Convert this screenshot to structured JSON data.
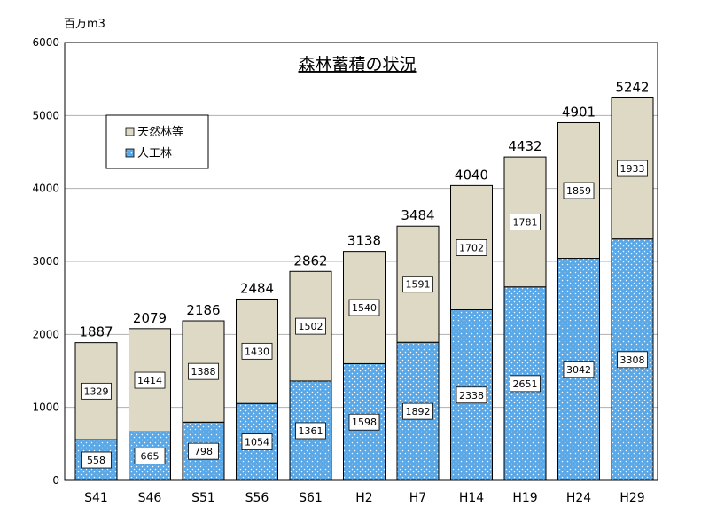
{
  "chart_data": {
    "type": "bar",
    "stacked": true,
    "title": "森林蓄積の状況",
    "unit_label": "百万m3",
    "categories": [
      "S41",
      "S46",
      "S51",
      "S56",
      "S61",
      "H2",
      "H7",
      "H14",
      "H19",
      "H24",
      "H29"
    ],
    "series": [
      {
        "name": "人工林",
        "values": [
          558,
          665,
          798,
          1054,
          1361,
          1598,
          1892,
          2338,
          2651,
          3042,
          3308
        ],
        "color": "#5ba8e6"
      },
      {
        "name": "天然林等",
        "values": [
          1329,
          1414,
          1388,
          1430,
          1502,
          1540,
          1591,
          1702,
          1781,
          1859,
          1933
        ],
        "color": "#ddd9c4"
      }
    ],
    "totals": [
      1887,
      2079,
      2186,
      2484,
      2862,
      3138,
      3484,
      4040,
      4432,
      4901,
      5242
    ],
    "ylim": [
      0,
      6000
    ],
    "yticks": [
      0,
      1000,
      2000,
      3000,
      4000,
      5000,
      6000
    ],
    "grid": true,
    "legend": "top-left"
  }
}
